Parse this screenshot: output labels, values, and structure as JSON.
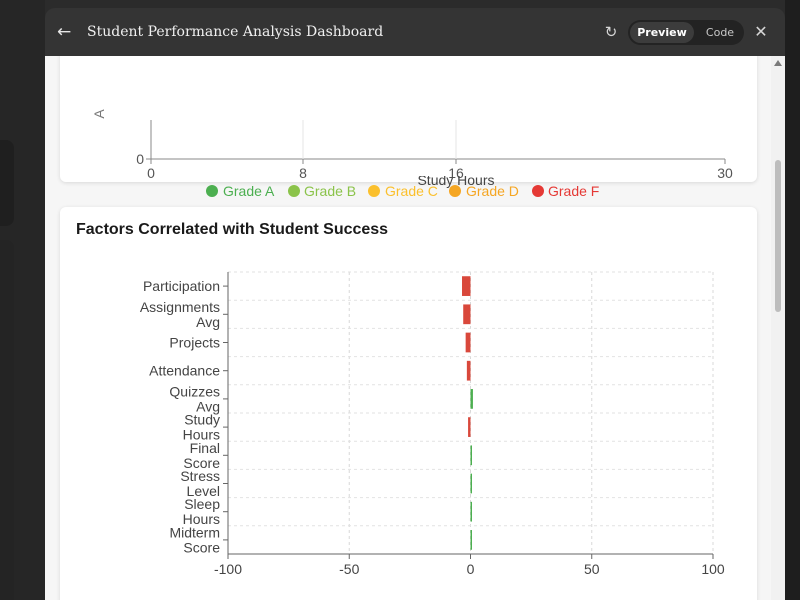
{
  "window": {
    "title": "Student Performance Analysis Dashboard",
    "preview_label": "Preview",
    "code_label": "Code"
  },
  "scatter_chart": {
    "x_ticks": [
      "0",
      "8",
      "16",
      "30"
    ],
    "y_ticks": [
      "0"
    ],
    "ylabel_partial": "A",
    "xlabel": "Study Hours",
    "legend": [
      {
        "label": "Grade A",
        "color": "#4caf50"
      },
      {
        "label": "Grade B",
        "color": "#8bc34a"
      },
      {
        "label": "Grade C",
        "color": "#fbc02d"
      },
      {
        "label": "Grade D",
        "color": "#f5a623"
      },
      {
        "label": "Grade F",
        "color": "#e53935"
      }
    ]
  },
  "correlation_chart": {
    "title": "Factors Correlated with Student Success"
  },
  "chart_data": {
    "type": "bar",
    "orientation": "horizontal",
    "title": "Factors Correlated with Student Success",
    "categories": [
      "Participation",
      "Assignments Avg",
      "Projects",
      "Attendance",
      "Quizzes Avg",
      "Study Hours",
      "Final Score",
      "Stress Level",
      "Sleep Hours",
      "Midterm Score"
    ],
    "tick_labels": [
      [
        "Participation"
      ],
      [
        "Assignments",
        "Avg"
      ],
      [
        "Projects"
      ],
      [
        "Attendance"
      ],
      [
        "Quizzes",
        "Avg"
      ],
      [
        "Study",
        "Hours"
      ],
      [
        "Final",
        "Score"
      ],
      [
        "Stress",
        "Level"
      ],
      [
        "Sleep",
        "Hours"
      ],
      [
        "Midterm",
        "Score"
      ]
    ],
    "values": [
      -3.5,
      -3,
      -2,
      -1.5,
      1,
      -1,
      0.5,
      0.4,
      0.2,
      0.1
    ],
    "xlim": [
      -100,
      100
    ],
    "x_ticks": [
      "-100",
      "-50",
      "0",
      "50",
      "100"
    ],
    "positive_color": "#4caf50",
    "negative_color": "#d9483b",
    "grid": true
  }
}
